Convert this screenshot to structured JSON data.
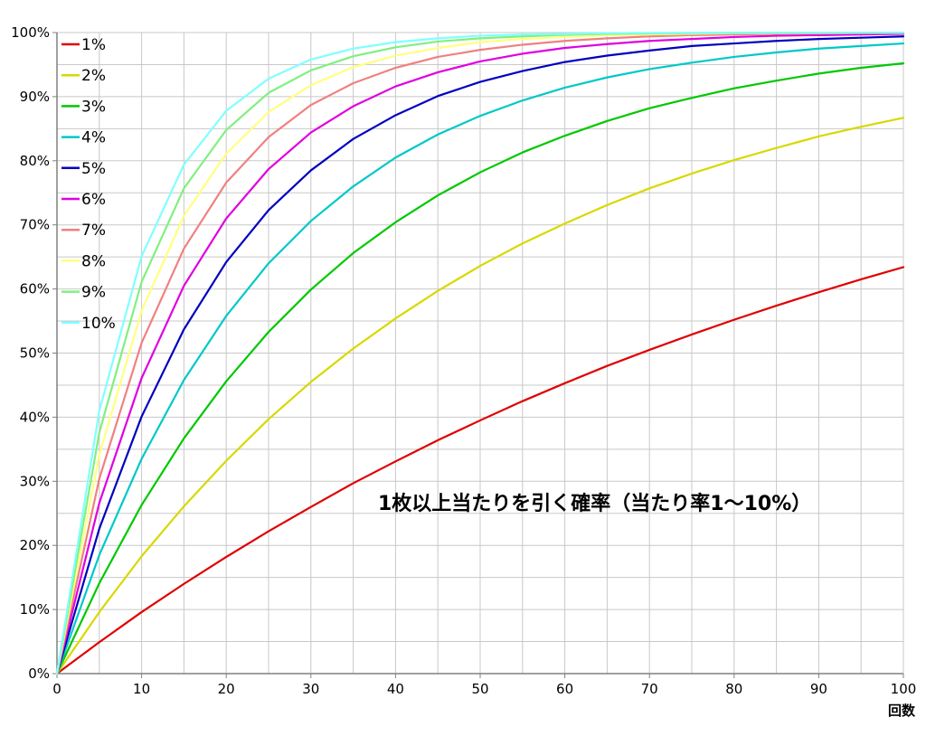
{
  "chart_data": {
    "type": "line",
    "title": "1枚以上当たりを引く確率（当たり率1～10%）",
    "xlabel": "回数",
    "ylabel": "",
    "xlim": [
      0,
      100
    ],
    "ylim": [
      0,
      100
    ],
    "x_ticks": [
      "0",
      "10",
      "20",
      "30",
      "40",
      "50",
      "60",
      "70",
      "80",
      "90",
      "100"
    ],
    "y_ticks": [
      "0%",
      "10%",
      "20%",
      "30%",
      "40%",
      "50%",
      "60%",
      "70%",
      "80%",
      "90%",
      "100%"
    ],
    "grid": true,
    "legend_position": "top-left",
    "x": [
      0,
      5,
      10,
      15,
      20,
      25,
      30,
      35,
      40,
      45,
      50,
      55,
      60,
      65,
      70,
      75,
      80,
      85,
      90,
      95,
      100
    ],
    "series": [
      {
        "name": "1%",
        "color": "#e00000",
        "values": [
          0,
          4.9,
          9.6,
          14.0,
          18.2,
          22.2,
          26.0,
          29.7,
          33.1,
          36.4,
          39.5,
          42.5,
          45.3,
          48.0,
          50.5,
          52.9,
          55.2,
          57.4,
          59.5,
          61.5,
          63.4
        ]
      },
      {
        "name": "2%",
        "color": "#d8d800",
        "values": [
          0,
          9.6,
          18.3,
          26.1,
          33.2,
          39.7,
          45.5,
          50.7,
          55.4,
          59.7,
          63.6,
          67.1,
          70.2,
          73.1,
          75.7,
          78.0,
          80.1,
          82.0,
          83.8,
          85.3,
          86.7
        ]
      },
      {
        "name": "3%",
        "color": "#00c800",
        "values": [
          0,
          14.1,
          26.3,
          36.7,
          45.6,
          53.3,
          59.9,
          65.6,
          70.4,
          74.6,
          78.2,
          81.3,
          83.9,
          86.2,
          88.2,
          89.8,
          91.3,
          92.5,
          93.6,
          94.5,
          95.2
        ]
      },
      {
        "name": "4%",
        "color": "#00c8c8",
        "values": [
          0,
          18.5,
          33.5,
          45.8,
          55.8,
          64.0,
          70.6,
          76.0,
          80.5,
          84.1,
          87.0,
          89.4,
          91.4,
          93.0,
          94.3,
          95.3,
          96.2,
          96.9,
          97.5,
          97.9,
          98.3
        ]
      },
      {
        "name": "5%",
        "color": "#0000c0",
        "values": [
          0,
          22.6,
          40.1,
          53.7,
          64.2,
          72.3,
          78.5,
          83.4,
          87.1,
          90.1,
          92.3,
          94.0,
          95.4,
          96.4,
          97.2,
          97.9,
          98.3,
          98.7,
          99.0,
          99.2,
          99.4
        ]
      },
      {
        "name": "6%",
        "color": "#e000e0",
        "values": [
          0,
          26.6,
          46.1,
          60.5,
          71.0,
          78.7,
          84.4,
          88.5,
          91.6,
          93.8,
          95.5,
          96.7,
          97.6,
          98.2,
          98.7,
          99.0,
          99.3,
          99.5,
          99.6,
          99.7,
          99.8
        ]
      },
      {
        "name": "7%",
        "color": "#f08080",
        "values": [
          0,
          30.4,
          51.6,
          66.3,
          76.6,
          83.7,
          88.7,
          92.1,
          94.5,
          96.2,
          97.3,
          98.1,
          98.7,
          99.1,
          99.4,
          99.6,
          99.7,
          99.8,
          99.85,
          99.9,
          99.93
        ]
      },
      {
        "name": "8%",
        "color": "#ffff80",
        "values": [
          0,
          34.1,
          56.6,
          71.4,
          81.1,
          87.6,
          91.8,
          94.6,
          96.4,
          97.6,
          98.5,
          99.0,
          99.3,
          99.6,
          99.7,
          99.8,
          99.9,
          99.92,
          99.95,
          99.97,
          99.98
        ]
      },
      {
        "name": "9%",
        "color": "#80f080",
        "values": [
          0,
          37.6,
          61.1,
          75.7,
          84.8,
          90.6,
          94.1,
          96.3,
          97.7,
          98.6,
          99.1,
          99.4,
          99.65,
          99.78,
          99.86,
          99.92,
          99.95,
          99.97,
          99.98,
          99.99,
          99.99
        ]
      },
      {
        "name": "10%",
        "color": "#80ffff",
        "values": [
          0,
          41.0,
          65.1,
          79.4,
          87.8,
          92.8,
          95.8,
          97.5,
          98.5,
          99.1,
          99.5,
          99.7,
          99.8,
          99.9,
          99.94,
          99.96,
          99.98,
          99.99,
          99.99,
          99.99,
          100
        ]
      }
    ]
  }
}
